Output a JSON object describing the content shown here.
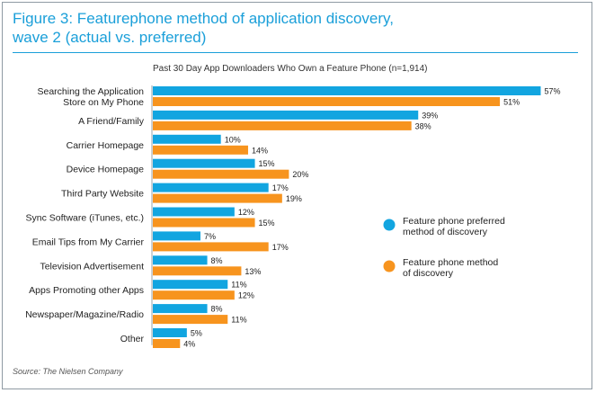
{
  "title_line1": "Figure 3: Featurephone method of application discovery,",
  "title_line2": "wave 2 (actual vs. preferred)",
  "source": "Source: The Nielsen Company",
  "colors": {
    "title": "#1a9fd9",
    "preferred": "#12a5e0",
    "actual": "#f7941e"
  },
  "chart_data": {
    "type": "bar",
    "orientation": "horizontal",
    "title": "Past 30 Day App Downloaders Who Own a Feature Phone (n=1,914)",
    "categories": [
      [
        "Searching the Application",
        "Store on My Phone"
      ],
      [
        "A Friend/Family"
      ],
      [
        "Carrier Homepage"
      ],
      [
        "Device Homepage"
      ],
      [
        "Third Party Website"
      ],
      [
        "Sync Software (iTunes, etc.)"
      ],
      [
        "Email Tips from My Carrier"
      ],
      [
        "Television Advertisement"
      ],
      [
        "Apps Promoting other Apps"
      ],
      [
        "Newspaper/Magazine/Radio"
      ],
      [
        "Other"
      ]
    ],
    "series": [
      {
        "name": "Feature phone preferred method of discovery",
        "legend_lines": [
          "Feature phone preferred",
          "method of discovery"
        ],
        "color": "#12a5e0",
        "values": [
          57,
          39,
          10,
          15,
          17,
          12,
          7,
          8,
          11,
          8,
          5
        ]
      },
      {
        "name": "Feature phone method of discovery",
        "legend_lines": [
          "Feature phone method",
          "of discovery"
        ],
        "color": "#f7941e",
        "values": [
          51,
          38,
          14,
          20,
          19,
          15,
          17,
          13,
          12,
          11,
          4
        ]
      }
    ],
    "value_suffix": "%",
    "legend_position": "right",
    "grid": false
  }
}
